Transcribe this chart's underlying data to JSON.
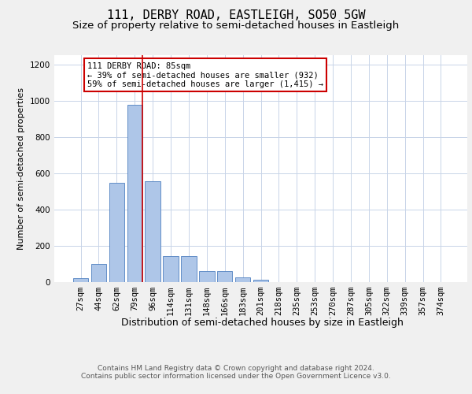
{
  "title": "111, DERBY ROAD, EASTLEIGH, SO50 5GW",
  "subtitle": "Size of property relative to semi-detached houses in Eastleigh",
  "xlabel": "Distribution of semi-detached houses by size in Eastleigh",
  "ylabel": "Number of semi-detached properties",
  "bin_labels": [
    "27sqm",
    "44sqm",
    "62sqm",
    "79sqm",
    "96sqm",
    "114sqm",
    "131sqm",
    "148sqm",
    "166sqm",
    "183sqm",
    "201sqm",
    "218sqm",
    "235sqm",
    "253sqm",
    "270sqm",
    "287sqm",
    "305sqm",
    "322sqm",
    "339sqm",
    "357sqm",
    "374sqm"
  ],
  "bar_values": [
    20,
    100,
    545,
    975,
    555,
    140,
    140,
    60,
    60,
    25,
    10,
    0,
    0,
    0,
    0,
    0,
    0,
    0,
    0,
    0,
    0
  ],
  "bar_color": "#aec6e8",
  "bar_edge_color": "#5080c0",
  "property_bin_index": 3,
  "annotation_text": "111 DERBY ROAD: 85sqm\n← 39% of semi-detached houses are smaller (932)\n59% of semi-detached houses are larger (1,415) →",
  "annotation_box_color": "#ffffff",
  "annotation_box_edge_color": "#cc0000",
  "vline_color": "#cc0000",
  "ylim": [
    0,
    1250
  ],
  "yticks": [
    0,
    200,
    400,
    600,
    800,
    1000,
    1200
  ],
  "footer_line1": "Contains HM Land Registry data © Crown copyright and database right 2024.",
  "footer_line2": "Contains public sector information licensed under the Open Government Licence v3.0.",
  "title_fontsize": 11,
  "subtitle_fontsize": 9.5,
  "xlabel_fontsize": 9,
  "ylabel_fontsize": 8,
  "tick_fontsize": 7.5,
  "annotation_fontsize": 7.5,
  "footer_fontsize": 6.5,
  "grid_color": "#c8d4e8",
  "background_color": "#ffffff",
  "fig_background_color": "#f0f0f0"
}
